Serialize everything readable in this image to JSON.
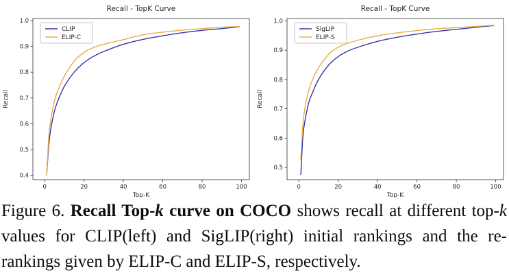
{
  "figure": {
    "caption": {
      "full_text": "Figure 6. Recall Top-k curve on COCO shows recall at different top-k values for CLIP(left) and SigLIP(right) initial rankings and the re-rankings given by ELIP-C and ELIP-S, respectively.",
      "runs": [
        {
          "text": "Figure 6. "
        },
        {
          "text": "Recall Top-",
          "bold": true
        },
        {
          "text": "k",
          "bold": true,
          "italic": true
        },
        {
          "text": " curve on COCO",
          "bold": true
        },
        {
          "text": " shows recall at different top-"
        },
        {
          "text": "k",
          "italic": true
        },
        {
          "text": " values for CLIP(left) and SigLIP(right) initial rankings and the re-rankings given by ELIP-C and ELIP-S, respectively."
        }
      ]
    }
  },
  "colors": {
    "blue_series": "#3535ac",
    "orange_series": "#ecab42",
    "axis": "#2e2e2e",
    "text": "#262626",
    "legend_border": "#b3b3b3"
  },
  "chart_data": [
    {
      "type": "line",
      "title": "Recall - TopK Curve",
      "xlabel": "Top-K",
      "ylabel": "Recall",
      "xlim": [
        -6,
        104
      ],
      "ylim": [
        0.383,
        1.008
      ],
      "xticks": [
        0,
        20,
        40,
        60,
        80,
        100
      ],
      "yticks": [
        0.4,
        0.5,
        0.6,
        0.7,
        0.8,
        0.9,
        1.0
      ],
      "grid": false,
      "legend_position": "upper left",
      "x": [
        1,
        2,
        3,
        5,
        7,
        10,
        15,
        20,
        25,
        30,
        40,
        50,
        60,
        70,
        80,
        90,
        99
      ],
      "series": [
        {
          "name": "CLIP",
          "color": "#3535ac",
          "values": [
            0.401,
            0.51,
            0.575,
            0.65,
            0.695,
            0.745,
            0.8,
            0.837,
            0.862,
            0.88,
            0.908,
            0.927,
            0.941,
            0.953,
            0.962,
            0.969,
            0.976
          ]
        },
        {
          "name": "ELIP-C",
          "color": "#ecab42",
          "values": [
            0.401,
            0.54,
            0.61,
            0.69,
            0.735,
            0.785,
            0.843,
            0.877,
            0.896,
            0.908,
            0.926,
            0.945,
            0.955,
            0.963,
            0.969,
            0.974,
            0.977
          ]
        }
      ]
    },
    {
      "type": "line",
      "title": "Recall - TopK Curve",
      "xlabel": "Top-K",
      "ylabel": "Recall",
      "xlim": [
        -6,
        104
      ],
      "ylim": [
        0.458,
        1.008
      ],
      "xticks": [
        0,
        20,
        40,
        60,
        80,
        100
      ],
      "yticks": [
        0.5,
        0.6,
        0.7,
        0.8,
        0.9,
        1.0
      ],
      "grid": false,
      "legend_position": "upper left",
      "x": [
        1,
        2,
        3,
        5,
        7,
        10,
        15,
        20,
        25,
        30,
        40,
        50,
        60,
        70,
        80,
        90,
        99
      ],
      "series": [
        {
          "name": "SigLIP",
          "color": "#3535ac",
          "values": [
            0.476,
            0.6,
            0.655,
            0.72,
            0.756,
            0.8,
            0.848,
            0.878,
            0.897,
            0.91,
            0.93,
            0.944,
            0.955,
            0.964,
            0.971,
            0.978,
            0.984
          ]
        },
        {
          "name": "ELIP-S",
          "color": "#ecab42",
          "values": [
            0.53,
            0.64,
            0.7,
            0.762,
            0.8,
            0.84,
            0.885,
            0.91,
            0.924,
            0.934,
            0.949,
            0.959,
            0.967,
            0.973,
            0.977,
            0.981,
            0.985
          ]
        }
      ]
    }
  ]
}
